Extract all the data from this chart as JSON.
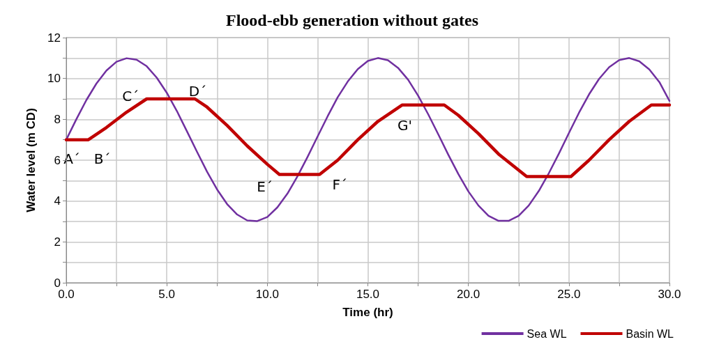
{
  "chart_data": {
    "type": "line",
    "title": "Flood-ebb generation without gates",
    "xlabel": "Time (hr)",
    "ylabel": "Water level (m CD)",
    "xlim": [
      0,
      30
    ],
    "ylim": [
      0,
      12
    ],
    "xticks": [
      {
        "value": 0,
        "label": "0.0"
      },
      {
        "value": 2.5,
        "label": null
      },
      {
        "value": 5,
        "label": "5.0"
      },
      {
        "value": 7.5,
        "label": null
      },
      {
        "value": 10,
        "label": "10.0"
      },
      {
        "value": 12.5,
        "label": null
      },
      {
        "value": 15,
        "label": "15.0"
      },
      {
        "value": 17.5,
        "label": null
      },
      {
        "value": 20,
        "label": "20.0"
      },
      {
        "value": 22.5,
        "label": null
      },
      {
        "value": 25,
        "label": "25.0"
      },
      {
        "value": 27.5,
        "label": null
      },
      {
        "value": 30,
        "label": "30.0"
      }
    ],
    "yticks": [
      0,
      {
        "value": 1,
        "label": null
      },
      2,
      {
        "value": 3,
        "label": null
      },
      4,
      {
        "value": 5,
        "label": null
      },
      6,
      {
        "value": 7,
        "label": null
      },
      8,
      {
        "value": 9,
        "label": null
      },
      10,
      {
        "value": 11,
        "label": null
      },
      12
    ],
    "grid": true,
    "legend": "bottom",
    "marker": "none",
    "line_style": "solid",
    "series": [
      {
        "name": "Sea WL",
        "color": "#7030a0",
        "x": [
          0,
          0.5,
          1,
          1.5,
          2,
          2.5,
          3,
          3.5,
          4,
          4.5,
          5,
          5.5,
          6,
          6.5,
          7,
          7.5,
          8,
          8.5,
          9,
          9.5,
          10,
          10.5,
          11,
          11.5,
          12,
          12.5,
          13,
          13.5,
          14,
          14.5,
          15,
          15.5,
          16,
          16.5,
          17,
          17.5,
          18,
          18.5,
          19,
          19.5,
          20,
          20.5,
          21,
          21.5,
          22,
          22.5,
          23,
          23.5,
          24,
          24.5,
          25,
          25.5,
          26,
          26.5,
          27,
          27.5,
          28,
          28.5,
          29,
          29.5,
          30
        ],
        "values": [
          7,
          8.0,
          8.94,
          9.75,
          10.39,
          10.82,
          10.99,
          10.92,
          10.6,
          10.04,
          9.3,
          8.41,
          7.42,
          6.42,
          5.44,
          4.57,
          3.85,
          3.34,
          3.05,
          3.02,
          3.22,
          3.69,
          4.36,
          5.21,
          6.16,
          7.16,
          8.15,
          9.08,
          9.85,
          10.46,
          10.86,
          11.0,
          10.89,
          10.52,
          9.94,
          9.16,
          8.25,
          7.27,
          6.27,
          5.32,
          4.47,
          3.78,
          3.28,
          3.03,
          3.03,
          3.28,
          3.78,
          4.49,
          5.36,
          6.32,
          7.33,
          8.32,
          9.22,
          9.98,
          10.55,
          10.9,
          11.0,
          10.84,
          10.44,
          9.82,
          8.9
        ]
      },
      {
        "name": "Basin WL",
        "color": "#c00000",
        "x": [
          0,
          1.1,
          2,
          3,
          4,
          6.4,
          7,
          8,
          9,
          10,
          10.6,
          12.6,
          13.5,
          14.5,
          15.5,
          16.7,
          18.8,
          19.5,
          20.5,
          21.5,
          22.9,
          25.1,
          26,
          27,
          28,
          29.1,
          30
        ],
        "values": [
          7,
          7,
          7.6,
          8.35,
          9,
          9,
          8.6,
          7.7,
          6.7,
          5.8,
          5.3,
          5.3,
          6.0,
          7.0,
          7.9,
          8.7,
          8.7,
          8.2,
          7.3,
          6.3,
          5.2,
          5.2,
          6.0,
          7.0,
          7.9,
          8.7,
          8.7
        ]
      }
    ],
    "annotations": [
      {
        "text": "A´",
        "x": 0,
        "y": 7
      },
      {
        "text": "B´",
        "x": 1.1,
        "y": 7
      },
      {
        "text": "C´",
        "x": 4,
        "y": 9
      },
      {
        "text": "D´",
        "x": 6.4,
        "y": 9
      },
      {
        "text": "E´",
        "x": 10.6,
        "y": 5.3
      },
      {
        "text": "F´",
        "x": 12.6,
        "y": 5.3
      },
      {
        "text": "G'",
        "x": 16.7,
        "y": 8.7
      }
    ]
  }
}
